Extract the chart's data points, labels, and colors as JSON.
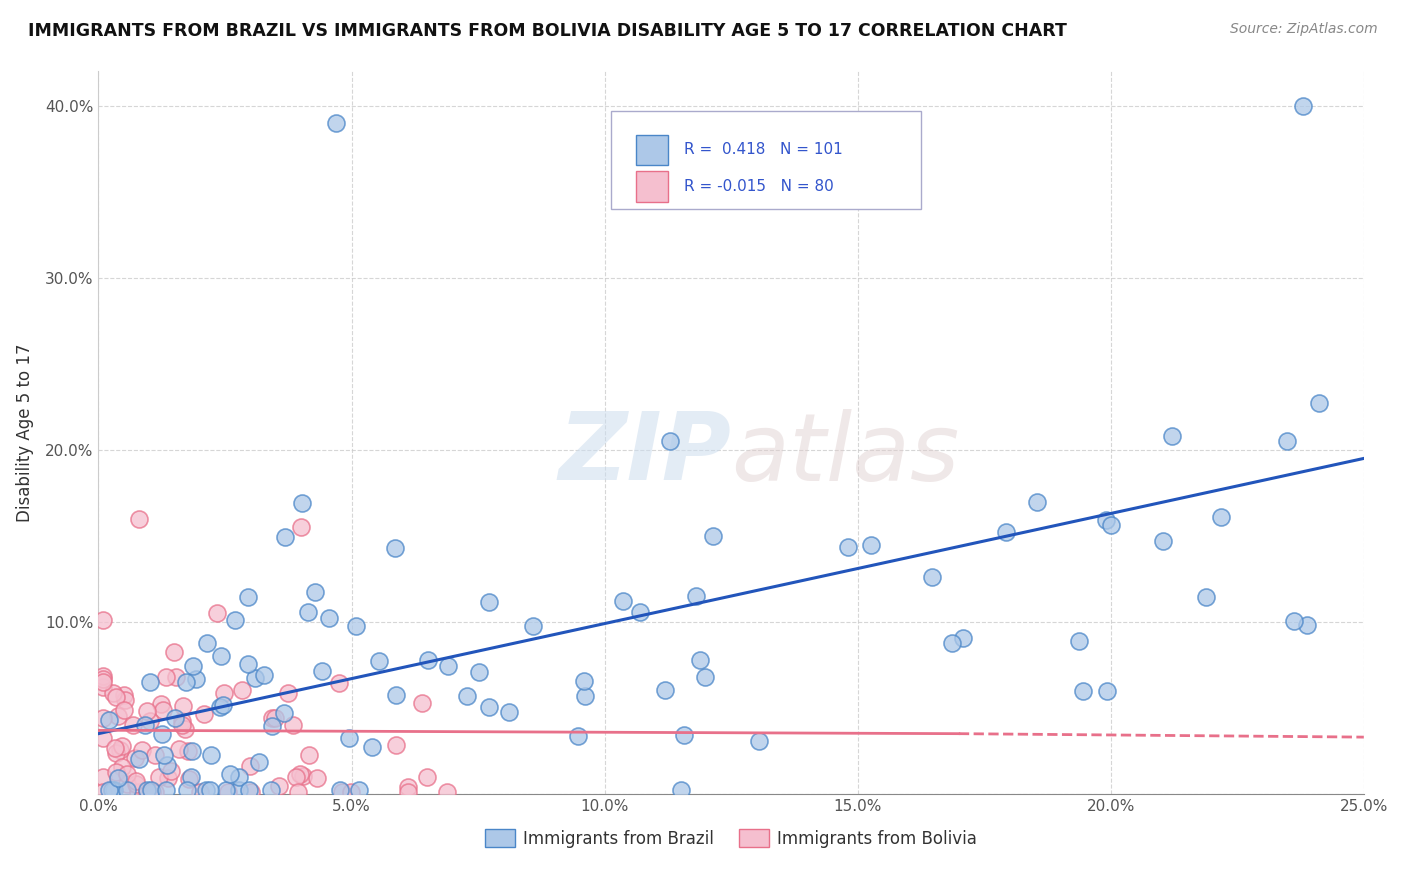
{
  "title": "IMMIGRANTS FROM BRAZIL VS IMMIGRANTS FROM BOLIVIA DISABILITY AGE 5 TO 17 CORRELATION CHART",
  "source": "Source: ZipAtlas.com",
  "ylabel": "Disability Age 5 to 17",
  "xlim": [
    0.0,
    0.25
  ],
  "ylim": [
    0.0,
    0.42
  ],
  "xticks": [
    0.0,
    0.05,
    0.1,
    0.15,
    0.2,
    0.25
  ],
  "xticklabels": [
    "0.0%",
    "5.0%",
    "10.0%",
    "15.0%",
    "20.0%",
    "25.0%"
  ],
  "yticks": [
    0.0,
    0.1,
    0.2,
    0.3,
    0.4
  ],
  "yticklabels": [
    "",
    "10.0%",
    "20.0%",
    "30.0%",
    "40.0%"
  ],
  "brazil_R": 0.418,
  "brazil_N": 101,
  "bolivia_R": -0.015,
  "bolivia_N": 80,
  "brazil_color": "#adc8e8",
  "bolivia_color": "#f5bfcf",
  "brazil_edge_color": "#4a86c8",
  "bolivia_edge_color": "#e8708a",
  "brazil_line_color": "#2255bb",
  "bolivia_line_color": "#e8708a",
  "grid_color": "#cccccc",
  "background_color": "#ffffff",
  "legend_text_color": "#3355cc"
}
